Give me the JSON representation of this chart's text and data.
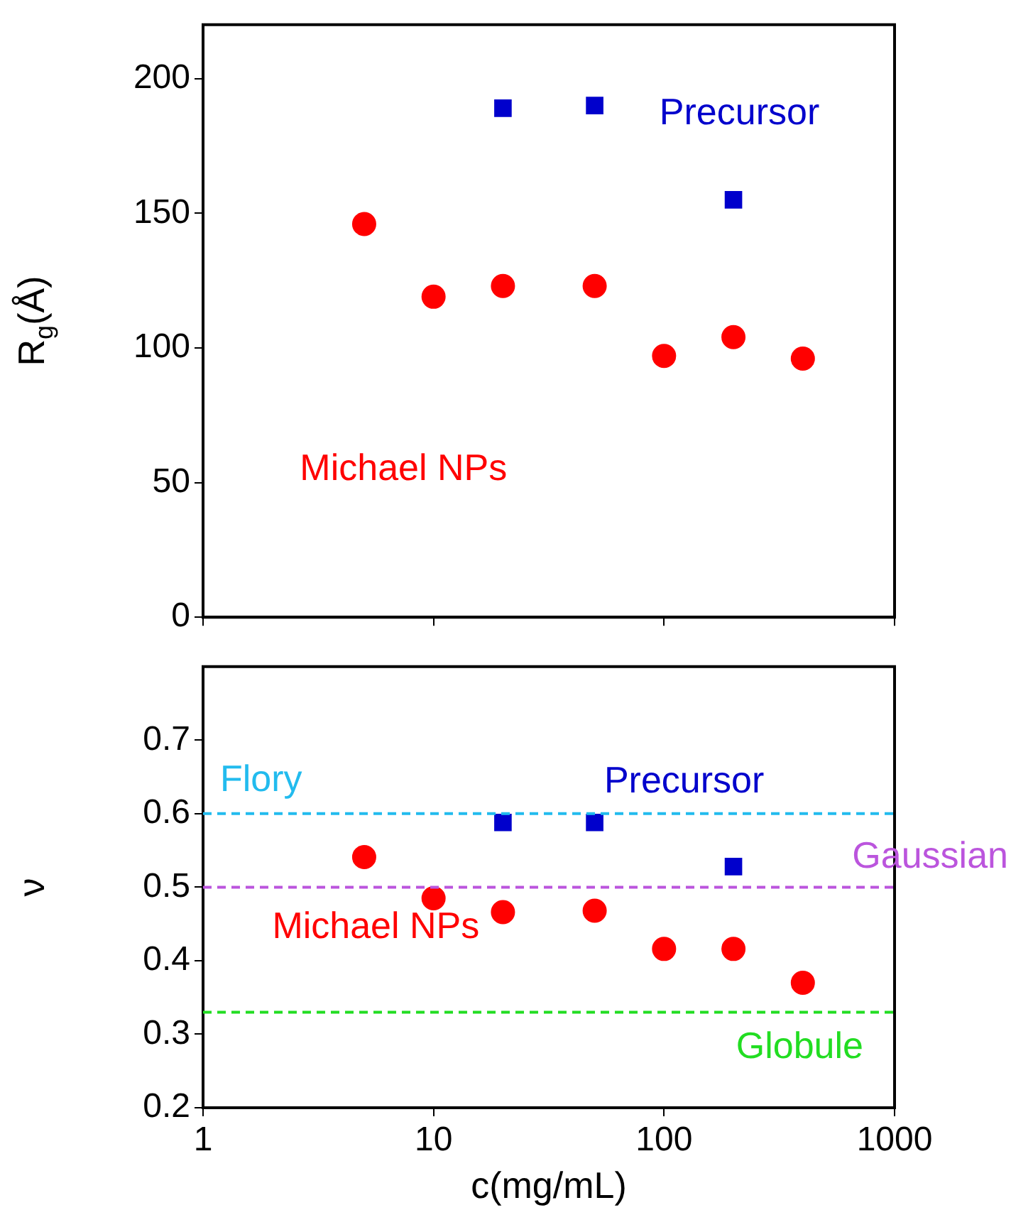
{
  "chart_data": [
    {
      "type": "scatter",
      "ylabel": "R$_{g}$(Å)",
      "log": "x",
      "xlim": [
        1,
        1000
      ],
      "xticks": [
        1,
        10,
        100,
        1000
      ],
      "ylim": [
        0,
        220
      ],
      "yticks": [
        0,
        50,
        100,
        150,
        200
      ],
      "tick_labels": "y",
      "grid": false,
      "legend": false,
      "series": [
        {
          "name": "Michael NPs",
          "color": "#ff0000",
          "marker": "circle",
          "x": [
            5,
            10,
            20,
            50,
            100,
            200,
            400
          ],
          "values": [
            146,
            119,
            123,
            123,
            97,
            104,
            96
          ]
        },
        {
          "name": "Precursor",
          "color": "#0000cc",
          "marker": "square",
          "x": [
            20,
            50,
            200
          ],
          "values": [
            189,
            190,
            155
          ]
        }
      ]
    },
    {
      "type": "scatter",
      "xlabel": "c(mg/mL)",
      "ylabel": "ν",
      "log": "x",
      "xlim": [
        1,
        1000
      ],
      "xticks": [
        1,
        10,
        100,
        1000
      ],
      "ylim": [
        0.2,
        0.8
      ],
      "yticks": [
        0.2,
        0.3,
        0.4,
        0.5,
        0.6,
        0.7
      ],
      "grid": false,
      "legend": false,
      "series": [
        {
          "name": "Michael NPs",
          "color": "#ff0000",
          "marker": "circle",
          "x": [
            5,
            10,
            20,
            50,
            100,
            200,
            400
          ],
          "values": [
            0.541,
            0.485,
            0.466,
            0.468,
            0.416,
            0.416,
            0.37
          ]
        },
        {
          "name": "Precursor",
          "color": "#0000cc",
          "marker": "square",
          "x": [
            20,
            50,
            200
          ],
          "values": [
            0.588,
            0.588,
            0.528
          ]
        }
      ],
      "ref_lines": [
        {
          "axis": "y",
          "value": 0.6,
          "label": "Flory",
          "color": "#22bbee",
          "line_style": "dashed"
        },
        {
          "axis": "y",
          "value": 0.5,
          "label": "Gaussian",
          "color": "#bb55dd",
          "line_style": "dashed"
        },
        {
          "axis": "y",
          "value": 0.33,
          "label": "Globule",
          "color": "#22dd22",
          "line_style": "dashed"
        }
      ]
    }
  ]
}
